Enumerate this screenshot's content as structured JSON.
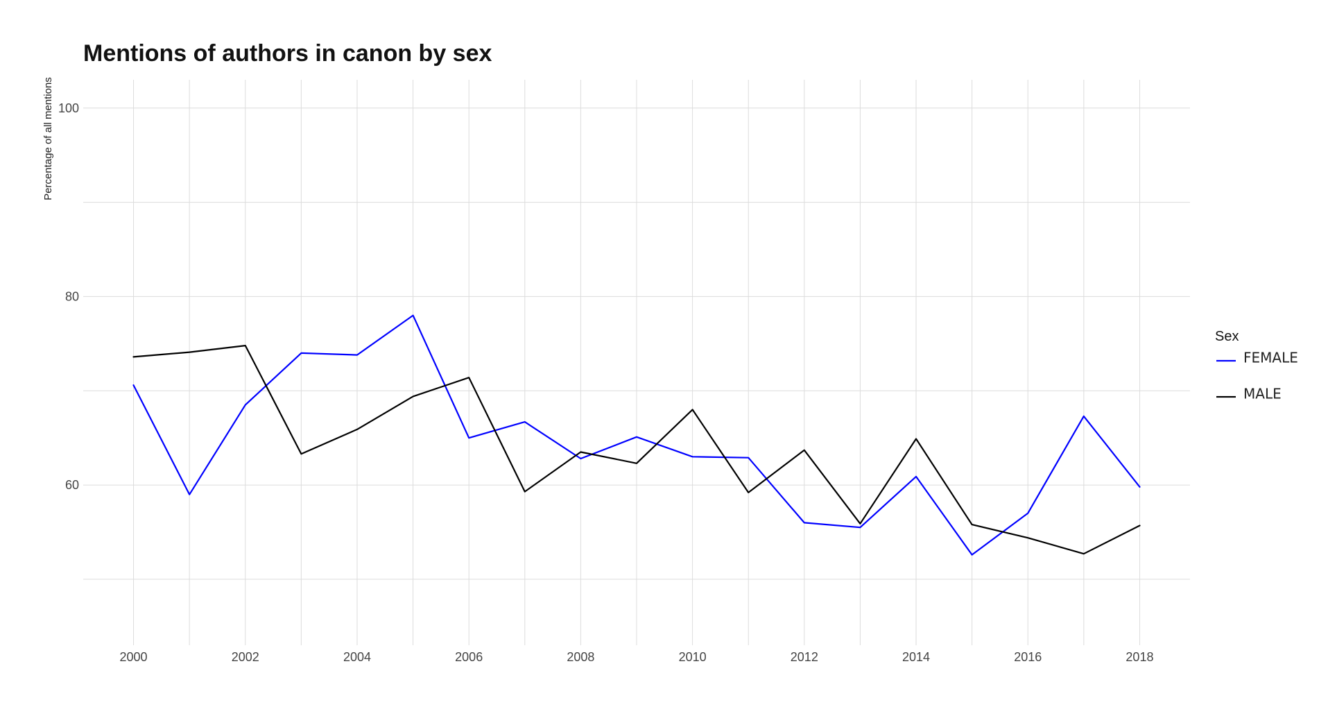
{
  "chart_data": {
    "type": "line",
    "title": "Mentions of authors in canon by sex",
    "ylabel": "Percentage of all mentions",
    "xlabel": "",
    "xlim": [
      1999.1,
      2018.9
    ],
    "ylim": [
      43,
      103
    ],
    "yticks": [
      60,
      80,
      100
    ],
    "yminor": [
      50,
      70,
      90
    ],
    "xticks": [
      2000,
      2002,
      2004,
      2006,
      2008,
      2010,
      2012,
      2014,
      2016,
      2018
    ],
    "xminor": [
      2001,
      2003,
      2005,
      2007,
      2009,
      2011,
      2013,
      2015,
      2017
    ],
    "x": [
      2000,
      2001,
      2002,
      2003,
      2004,
      2005,
      2006,
      2007,
      2008,
      2009,
      2010,
      2011,
      2012,
      2013,
      2014,
      2015,
      2016,
      2017,
      2018
    ],
    "series": [
      {
        "name": "FEMALE",
        "color": "#0000ff",
        "values": [
          70.6,
          59.0,
          68.5,
          74.0,
          73.8,
          78.0,
          65.0,
          66.7,
          62.8,
          65.1,
          63.0,
          62.9,
          56.0,
          55.5,
          60.9,
          52.6,
          57.0,
          67.3,
          59.8
        ]
      },
      {
        "name": "MALE",
        "color": "#000000",
        "values": [
          73.6,
          74.1,
          74.8,
          63.3,
          65.9,
          69.4,
          71.4,
          59.3,
          63.5,
          62.3,
          68.0,
          59.2,
          63.7,
          55.9,
          64.9,
          55.8,
          54.4,
          52.7,
          55.7
        ]
      }
    ],
    "grid": true,
    "legend": {
      "title": "Sex",
      "position": "right"
    }
  }
}
